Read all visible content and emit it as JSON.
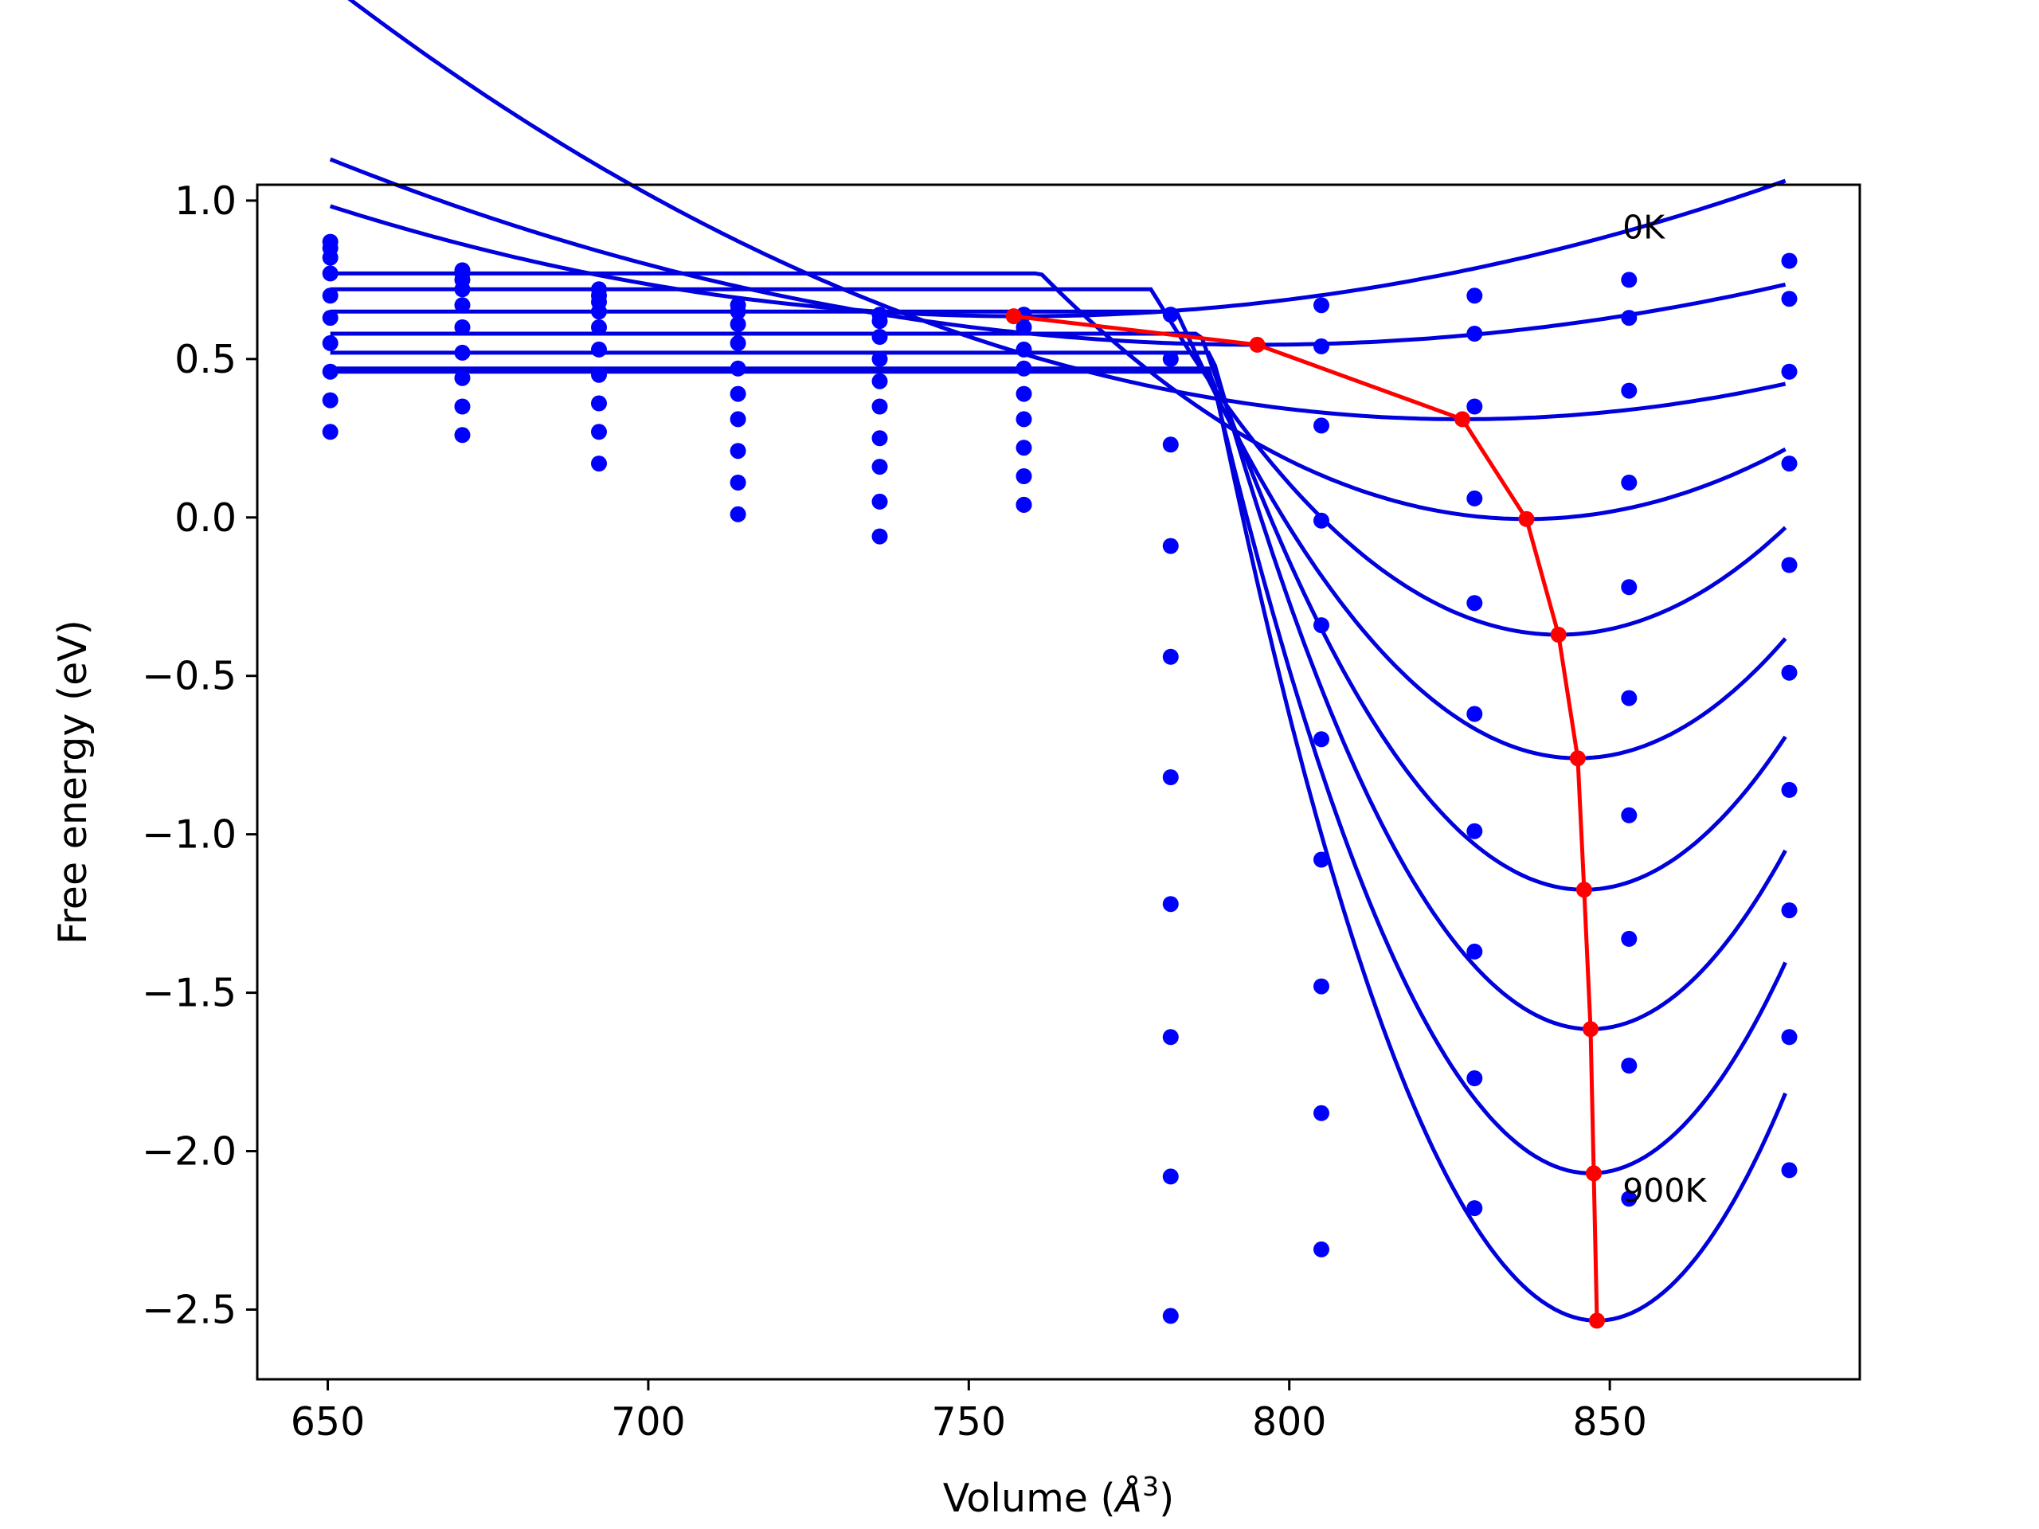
{
  "chart_data": {
    "type": "line",
    "title": "",
    "xlabel": "Volume (",
    "xlabel_symbol": "Å",
    "xlabel_exponent": "3",
    "xlabel_close": ")",
    "ylabel": "Free energy (eV)",
    "xlim": [
      639,
      889
    ],
    "ylim": [
      -2.72,
      1.05
    ],
    "xticks": [
      650,
      700,
      750,
      800,
      850
    ],
    "yticks": [
      1.0,
      0.5,
      0.0,
      -0.5,
      -1.0,
      -1.5,
      -2.0,
      -2.5
    ],
    "xtick_labels": [
      "650",
      "700",
      "750",
      "800",
      "850"
    ],
    "ytick_labels": [
      "1.0",
      "0.5",
      "0.0",
      "−0.5",
      "−1.0",
      "−1.5",
      "−2.0",
      "−2.5"
    ],
    "annotations": [
      {
        "text": "0K",
        "x": 852,
        "y": 0.88
      },
      {
        "text": "900K",
        "x": 852,
        "y": -2.16
      }
    ],
    "colors": {
      "points": "#0000ff",
      "fit_curves": "#0000dd",
      "minimum_path": "#ff0000",
      "frame": "#000000"
    },
    "volumes": [
      650.4,
      671.0,
      692.3,
      714.0,
      736.1,
      758.6,
      781.5,
      805.0,
      828.9,
      853.0,
      878.0
    ],
    "series": [
      {
        "values": [
          0.87,
          0.78,
          0.72,
          0.67,
          0.64,
          0.64,
          0.64,
          0.67,
          0.7,
          0.75,
          0.81
        ]
      },
      {
        "values": [
          0.85,
          0.77,
          0.7,
          0.65,
          0.62,
          0.6,
          0.5,
          0.54,
          0.58,
          0.63,
          0.69
        ]
      },
      {
        "values": [
          0.82,
          0.75,
          0.68,
          0.61,
          0.57,
          0.53,
          0.23,
          0.29,
          0.35,
          0.4,
          0.46
        ]
      },
      {
        "values": [
          0.77,
          0.72,
          0.65,
          0.55,
          0.5,
          0.47,
          -0.09,
          -0.01,
          0.06,
          0.11,
          0.17
        ]
      },
      {
        "values": [
          0.7,
          0.67,
          0.6,
          0.47,
          0.43,
          0.39,
          -0.44,
          -0.34,
          -0.27,
          -0.22,
          -0.15
        ]
      },
      {
        "values": [
          0.63,
          0.6,
          0.53,
          0.39,
          0.35,
          0.31,
          -0.82,
          -0.7,
          -0.62,
          -0.57,
          -0.49
        ]
      },
      {
        "values": [
          0.55,
          0.52,
          0.45,
          0.31,
          0.25,
          0.22,
          -1.22,
          -1.08,
          -0.99,
          -0.94,
          -0.86
        ]
      },
      {
        "values": [
          0.46,
          0.44,
          0.36,
          0.21,
          0.16,
          0.13,
          -1.64,
          -1.48,
          -1.37,
          -1.33,
          -1.24
        ]
      },
      {
        "values": [
          0.37,
          0.35,
          0.27,
          0.11,
          0.05,
          0.04,
          -2.08,
          -1.88,
          -1.77,
          -1.73,
          -1.64
        ]
      },
      {
        "values": [
          0.27,
          0.26,
          0.17,
          0.01,
          -0.06,
          0.04,
          -2.52,
          -2.31,
          -2.18,
          -2.15,
          -2.06
        ]
      }
    ],
    "fit_curves": [
      {
        "a": 3e-05,
        "vmin": 758,
        "emin": 0.635,
        "clip": null
      },
      {
        "a": 2.8e-05,
        "vmin": 795,
        "emin": 0.545,
        "clip": null
      },
      {
        "a": 4.4e-05,
        "vmin": 827,
        "emin": 0.31,
        "clip": null
      },
      {
        "a": 0.000135,
        "vmin": 837,
        "emin": -0.005,
        "clip": 0.77
      },
      {
        "a": 0.00027,
        "vmin": 842,
        "emin": -0.37,
        "clip": 0.72
      },
      {
        "a": 0.00036,
        "vmin": 845,
        "emin": -0.76,
        "clip": 0.65
      },
      {
        "a": 0.00049,
        "vmin": 846,
        "emin": -1.175,
        "clip": 0.58
      },
      {
        "a": 0.00061,
        "vmin": 847,
        "emin": -1.615,
        "clip": 0.52
      },
      {
        "a": 0.00072,
        "vmin": 847,
        "emin": -2.07,
        "clip": 0.47
      },
      {
        "a": 0.00083,
        "vmin": 848,
        "emin": -2.535,
        "clip": 0.46
      }
    ],
    "minimum_path": {
      "x": [
        757,
        795,
        827,
        837,
        842,
        845,
        846,
        847,
        847.5,
        848
      ],
      "y": [
        0.635,
        0.545,
        0.31,
        -0.005,
        -0.37,
        -0.76,
        -1.175,
        -1.615,
        -2.07,
        -2.535
      ]
    }
  }
}
